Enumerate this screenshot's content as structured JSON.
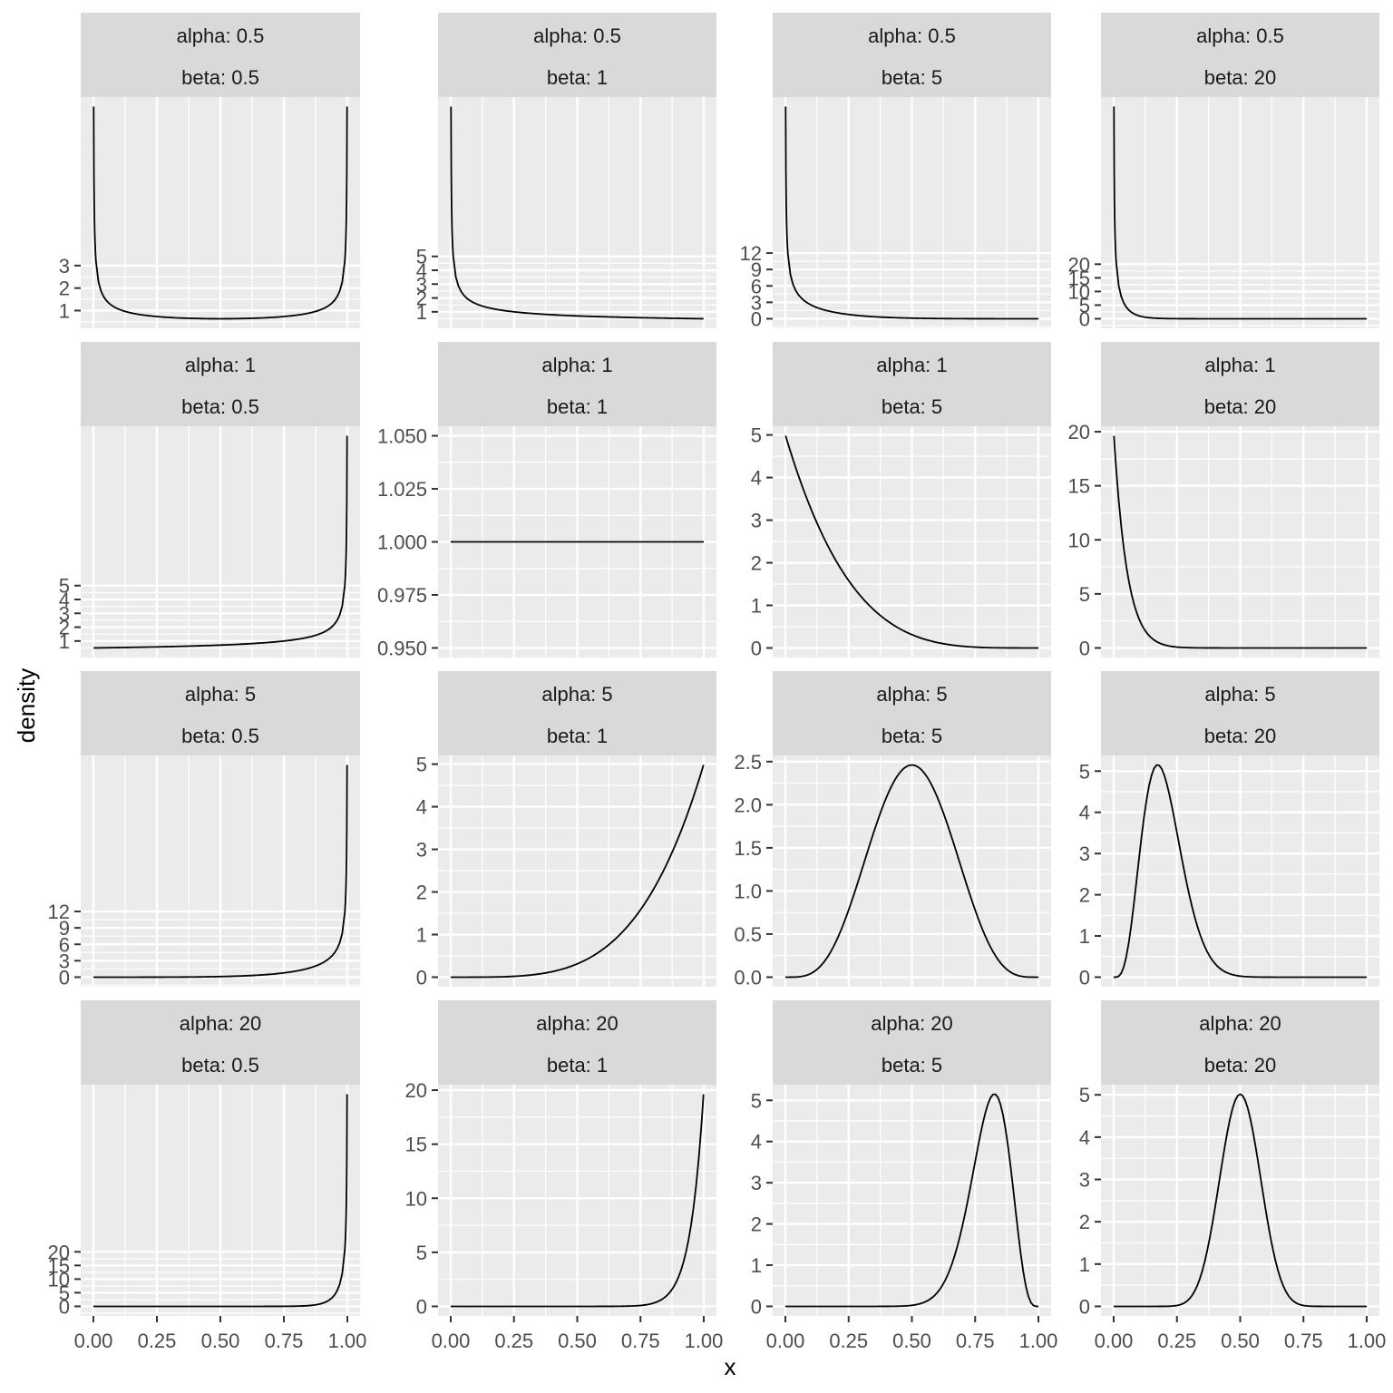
{
  "chart_data": {
    "type": "line",
    "facet_prefix_row": "alpha: ",
    "facet_prefix_col": "beta: ",
    "alphas": [
      0.5,
      1,
      5,
      20
    ],
    "betas": [
      0.5,
      1,
      5,
      20
    ],
    "xlabel": "x",
    "ylabel": "density",
    "xlim": [
      0,
      1
    ],
    "x_ticks": [
      "0.00",
      "0.25",
      "0.50",
      "0.75",
      "1.00"
    ],
    "scales": "free_y",
    "grid": true,
    "line_color": "#000000",
    "panel_background": "#ebebeb",
    "strip_background": "#d9d9d9",
    "grid_color": "#ffffff",
    "facets": [
      {
        "alpha": 0.5,
        "beta": 0.5,
        "y_ticks": [
          "1",
          "2",
          "3"
        ]
      },
      {
        "alpha": 0.5,
        "beta": 1,
        "y_ticks": [
          "1",
          "2",
          "3",
          "4",
          "5"
        ]
      },
      {
        "alpha": 0.5,
        "beta": 5,
        "y_ticks": [
          "0",
          "3",
          "6",
          "9",
          "12"
        ]
      },
      {
        "alpha": 0.5,
        "beta": 20,
        "y_ticks": [
          "0",
          "5",
          "10",
          "15",
          "20"
        ]
      },
      {
        "alpha": 1,
        "beta": 0.5,
        "y_ticks": [
          "1",
          "2",
          "3",
          "4",
          "5"
        ]
      },
      {
        "alpha": 1,
        "beta": 1,
        "y_ticks": [
          "0.950",
          "0.975",
          "1.000",
          "1.025",
          "1.050"
        ]
      },
      {
        "alpha": 1,
        "beta": 5,
        "y_ticks": [
          "0",
          "1",
          "2",
          "3",
          "4",
          "5"
        ]
      },
      {
        "alpha": 1,
        "beta": 20,
        "y_ticks": [
          "0",
          "5",
          "10",
          "15",
          "20"
        ]
      },
      {
        "alpha": 5,
        "beta": 0.5,
        "y_ticks": [
          "0",
          "3",
          "6",
          "9",
          "12"
        ]
      },
      {
        "alpha": 5,
        "beta": 1,
        "y_ticks": [
          "0",
          "1",
          "2",
          "3",
          "4",
          "5"
        ]
      },
      {
        "alpha": 5,
        "beta": 5,
        "y_ticks": [
          "0.0",
          "0.5",
          "1.0",
          "1.5",
          "2.0",
          "2.5"
        ]
      },
      {
        "alpha": 5,
        "beta": 20,
        "y_ticks": [
          "0",
          "1",
          "2",
          "3",
          "4",
          "5"
        ]
      },
      {
        "alpha": 20,
        "beta": 0.5,
        "y_ticks": [
          "0",
          "5",
          "10",
          "15",
          "20"
        ]
      },
      {
        "alpha": 20,
        "beta": 1,
        "y_ticks": [
          "0",
          "5",
          "10",
          "15",
          "20"
        ]
      },
      {
        "alpha": 20,
        "beta": 5,
        "y_ticks": [
          "0",
          "1",
          "2",
          "3",
          "4",
          "5"
        ]
      },
      {
        "alpha": 20,
        "beta": 20,
        "y_ticks": [
          "0",
          "1",
          "2",
          "3",
          "4",
          "5"
        ]
      }
    ]
  }
}
